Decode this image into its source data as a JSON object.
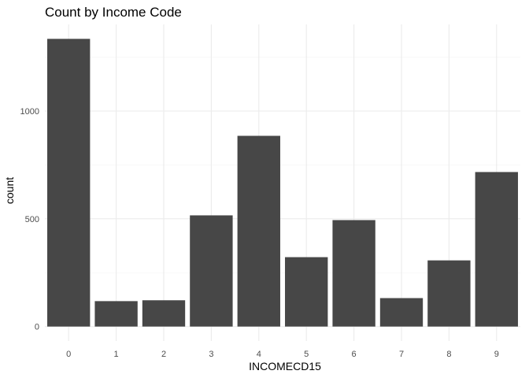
{
  "chart_data": {
    "type": "bar",
    "title": "Count by Income Code",
    "xlabel": "INCOMECD15",
    "ylabel": "count",
    "categories": [
      "0",
      "1",
      "2",
      "3",
      "4",
      "5",
      "6",
      "7",
      "8",
      "9"
    ],
    "values": [
      1335,
      118,
      122,
      516,
      885,
      322,
      494,
      132,
      307,
      717
    ],
    "ylim": [
      -67,
      1402
    ],
    "yticks": [
      0,
      500,
      1000
    ],
    "ytick_labels": [
      "0",
      "500",
      "1000"
    ],
    "grid": true,
    "legend": "none",
    "bar_color": "#474747",
    "background": "#ffffff"
  }
}
